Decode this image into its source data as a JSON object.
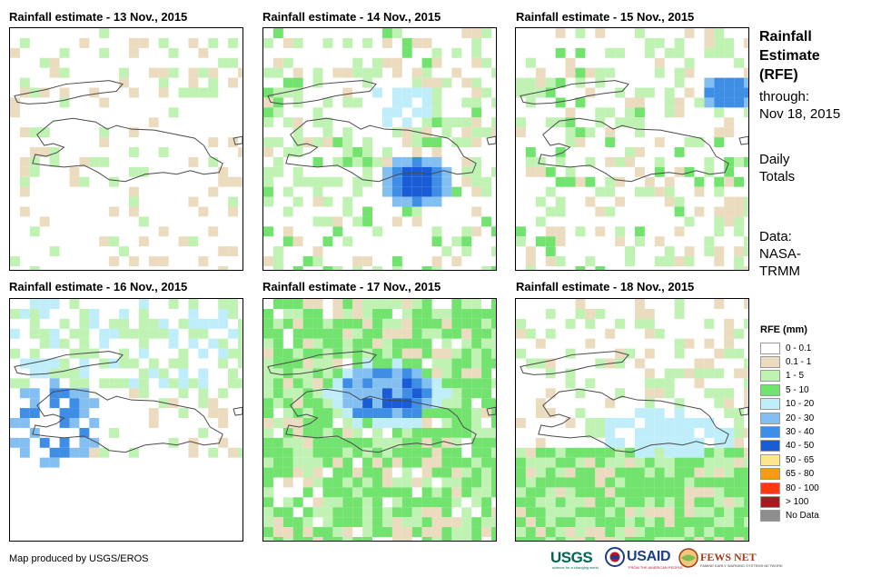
{
  "panels": [
    {
      "title": "Rainfall estimate - 13 Nov., 2015",
      "mean_rfe_category": "0 - 0.1"
    },
    {
      "title": "Rainfall estimate - 14 Nov., 2015",
      "mean_rfe_category": "1 - 5"
    },
    {
      "title": "Rainfall estimate - 15 Nov., 2015",
      "mean_rfe_category": "0.1 - 1"
    },
    {
      "title": "Rainfall estimate - 16 Nov., 2015",
      "mean_rfe_category": "1 - 5"
    },
    {
      "title": "Rainfall estimate - 17 Nov., 2015",
      "mean_rfe_category": "5 - 10"
    },
    {
      "title": "Rainfall estimate - 18 Nov., 2015",
      "mean_rfe_category": "1 - 5"
    }
  ],
  "sidebar": {
    "heading_lines": [
      "Rainfall",
      "Estimate",
      "(RFE)"
    ],
    "through_lines": [
      "through:",
      "Nov 18, 2015"
    ],
    "totals_lines": [
      "Daily",
      "Totals"
    ],
    "data_lines": [
      "Data:",
      "NASA-",
      "TRMM"
    ]
  },
  "legend": {
    "title": "RFE (mm)",
    "items": [
      {
        "label": "0 - 0.1",
        "color": "#ffffff"
      },
      {
        "label": "0.1 - 1",
        "color": "#ecdcbf"
      },
      {
        "label": "1 - 5",
        "color": "#bff2b3"
      },
      {
        "label": "5 - 10",
        "color": "#72e36f"
      },
      {
        "label": "10 - 20",
        "color": "#bfeefa"
      },
      {
        "label": "20 - 30",
        "color": "#84bff2"
      },
      {
        "label": "30 - 40",
        "color": "#3f8ee6"
      },
      {
        "label": "40 - 50",
        "color": "#1a5bd6"
      },
      {
        "label": "50 - 65",
        "color": "#fde78a"
      },
      {
        "label": "65 - 80",
        "color": "#f89c0f"
      },
      {
        "label": "80 - 100",
        "color": "#ff3a12"
      },
      {
        "label": "> 100",
        "color": "#a8191f"
      },
      {
        "label": "No Data",
        "color": "#8e8e8e"
      }
    ]
  },
  "credit": "Map produced by USGS/EROS",
  "logos": {
    "usgs": "USGS",
    "usgs_tagline": "science for a changing world",
    "usaid": "USAID",
    "usaid_tagline": "FROM THE AMERICAN PEOPLE",
    "fews": "FEWS NET",
    "fews_tagline": "FAMINE EARLY WARNING SYSTEMS NETWORK"
  }
}
